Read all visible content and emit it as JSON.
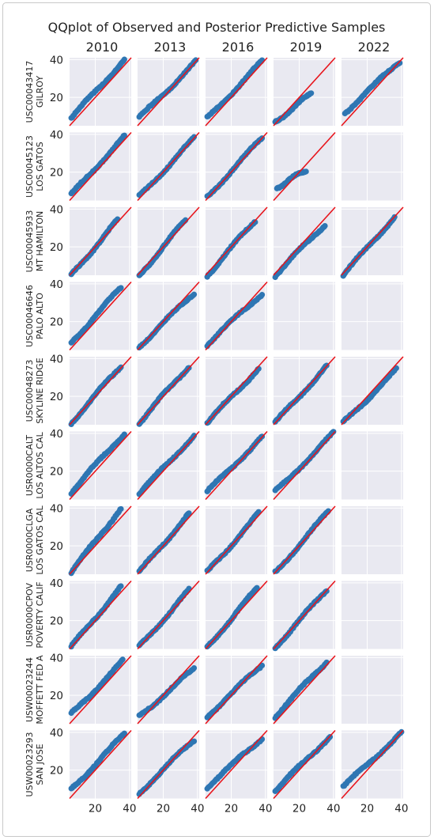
{
  "chart_data": {
    "type": "scatter",
    "title": "QQplot of Observed and Posterior Predictive Samples",
    "columns": [
      "2010",
      "2013",
      "2016",
      "2019",
      "2022"
    ],
    "rows": [
      {
        "station": "USC00043417",
        "name": "GILROY"
      },
      {
        "station": "USC00045123",
        "name": "LOS GATOS"
      },
      {
        "station": "USC00045933",
        "name": "MT HAMILTON"
      },
      {
        "station": "USC00046646",
        "name": "PALO ALTO"
      },
      {
        "station": "USC00048273",
        "name": "SKYLINE RIDGE"
      },
      {
        "station": "USR0000CALT",
        "name": "LOS ALTOS CAL"
      },
      {
        "station": "USR0000CLGA",
        "name": "LOS GATOS CAL"
      },
      {
        "station": "USR0000CPOV",
        "name": "POVERTY CALIF"
      },
      {
        "station": "USW00023244",
        "name": "MOFFETT FED A"
      },
      {
        "station": "USW00023293",
        "name": "SAN JOSE"
      }
    ],
    "x_ticks": [
      20,
      40
    ],
    "y_ticks": [
      20,
      40
    ],
    "xlim": [
      5,
      41
    ],
    "ylim": [
      5,
      41
    ],
    "reference_line": "y = x",
    "reference_color": "#e8141b",
    "point_color": "#2e76b3",
    "panel_background": "#e9e9f1",
    "grid": true,
    "sharex": true,
    "sharey": true,
    "panels": [
      [
        {
          "xmin": 6,
          "xmax": 37,
          "ymin": 9,
          "ymax": 40
        },
        {
          "xmin": 6,
          "xmax": 39,
          "ymin": 9,
          "ymax": 39
        },
        {
          "xmin": 6,
          "xmax": 38,
          "ymin": 9,
          "ymax": 39
        },
        {
          "xmin": 6,
          "xmax": 27,
          "ymin": 7,
          "ymax": 22
        },
        {
          "xmin": 7,
          "xmax": 39,
          "ymin": 12,
          "ymax": 39
        }
      ],
      [
        {
          "xmin": 6,
          "xmax": 37,
          "ymin": 8,
          "ymax": 39
        },
        {
          "xmin": 6,
          "xmax": 38,
          "ymin": 7,
          "ymax": 38
        },
        {
          "xmin": 6,
          "xmax": 38,
          "ymin": 7,
          "ymax": 38
        },
        {
          "xmin": 7,
          "xmax": 24,
          "ymin": 12,
          "ymax": 21
        },
        null
      ],
      [
        {
          "xmin": 6,
          "xmax": 33,
          "ymin": 5,
          "ymax": 34
        },
        {
          "xmin": 6,
          "xmax": 33,
          "ymin": 5,
          "ymax": 34
        },
        {
          "xmin": 6,
          "xmax": 34,
          "ymin": 5,
          "ymax": 34
        },
        {
          "xmin": 6,
          "xmax": 35,
          "ymin": 5,
          "ymax": 32
        },
        {
          "xmin": 6,
          "xmax": 36,
          "ymin": 5,
          "ymax": 36
        }
      ],
      [
        {
          "xmin": 6,
          "xmax": 35,
          "ymin": 9,
          "ymax": 38
        },
        {
          "xmin": 6,
          "xmax": 38,
          "ymin": 7,
          "ymax": 35
        },
        {
          "xmin": 6,
          "xmax": 38,
          "ymin": 8,
          "ymax": 35
        },
        null,
        null
      ],
      [
        {
          "xmin": 6,
          "xmax": 35,
          "ymin": 6,
          "ymax": 36
        },
        {
          "xmin": 6,
          "xmax": 35,
          "ymin": 6,
          "ymax": 36
        },
        {
          "xmin": 6,
          "xmax": 36,
          "ymin": 6,
          "ymax": 35
        },
        {
          "xmin": 6,
          "xmax": 36,
          "ymin": 6,
          "ymax": 36
        },
        {
          "xmin": 6,
          "xmax": 37,
          "ymin": 6,
          "ymax": 34
        }
      ],
      [
        {
          "xmin": 6,
          "xmax": 37,
          "ymin": 9,
          "ymax": 40
        },
        {
          "xmin": 6,
          "xmax": 38,
          "ymin": 8,
          "ymax": 39
        },
        {
          "xmin": 6,
          "xmax": 38,
          "ymin": 9,
          "ymax": 38
        },
        {
          "xmin": 6,
          "xmax": 40,
          "ymin": 9,
          "ymax": 40
        },
        null
      ],
      [
        {
          "xmin": 6,
          "xmax": 35,
          "ymin": 6,
          "ymax": 40
        },
        {
          "xmin": 6,
          "xmax": 35,
          "ymin": 6,
          "ymax": 37
        },
        {
          "xmin": 6,
          "xmax": 36,
          "ymin": 6,
          "ymax": 37
        },
        {
          "xmin": 6,
          "xmax": 37,
          "ymin": 6,
          "ymax": 38
        },
        null
      ],
      [
        {
          "xmin": 6,
          "xmax": 35,
          "ymin": 6,
          "ymax": 38
        },
        {
          "xmin": 6,
          "xmax": 35,
          "ymin": 6,
          "ymax": 36
        },
        {
          "xmin": 6,
          "xmax": 35,
          "ymin": 6,
          "ymax": 37
        },
        {
          "xmin": 6,
          "xmax": 36,
          "ymin": 6,
          "ymax": 36
        },
        null
      ],
      [
        {
          "xmin": 6,
          "xmax": 36,
          "ymin": 10,
          "ymax": 38
        },
        {
          "xmin": 6,
          "xmax": 38,
          "ymin": 9,
          "ymax": 34
        },
        {
          "xmin": 6,
          "xmax": 38,
          "ymin": 9,
          "ymax": 36
        },
        {
          "xmin": 6,
          "xmax": 36,
          "ymin": 9,
          "ymax": 38
        },
        null
      ],
      [
        {
          "xmin": 6,
          "xmax": 37,
          "ymin": 10,
          "ymax": 39
        },
        {
          "xmin": 6,
          "xmax": 38,
          "ymin": 8,
          "ymax": 36
        },
        {
          "xmin": 6,
          "xmax": 38,
          "ymin": 11,
          "ymax": 37
        },
        {
          "xmin": 6,
          "xmax": 38,
          "ymin": 9,
          "ymax": 38
        },
        {
          "xmin": 6,
          "xmax": 40,
          "ymin": 11,
          "ymax": 40
        }
      ]
    ]
  }
}
